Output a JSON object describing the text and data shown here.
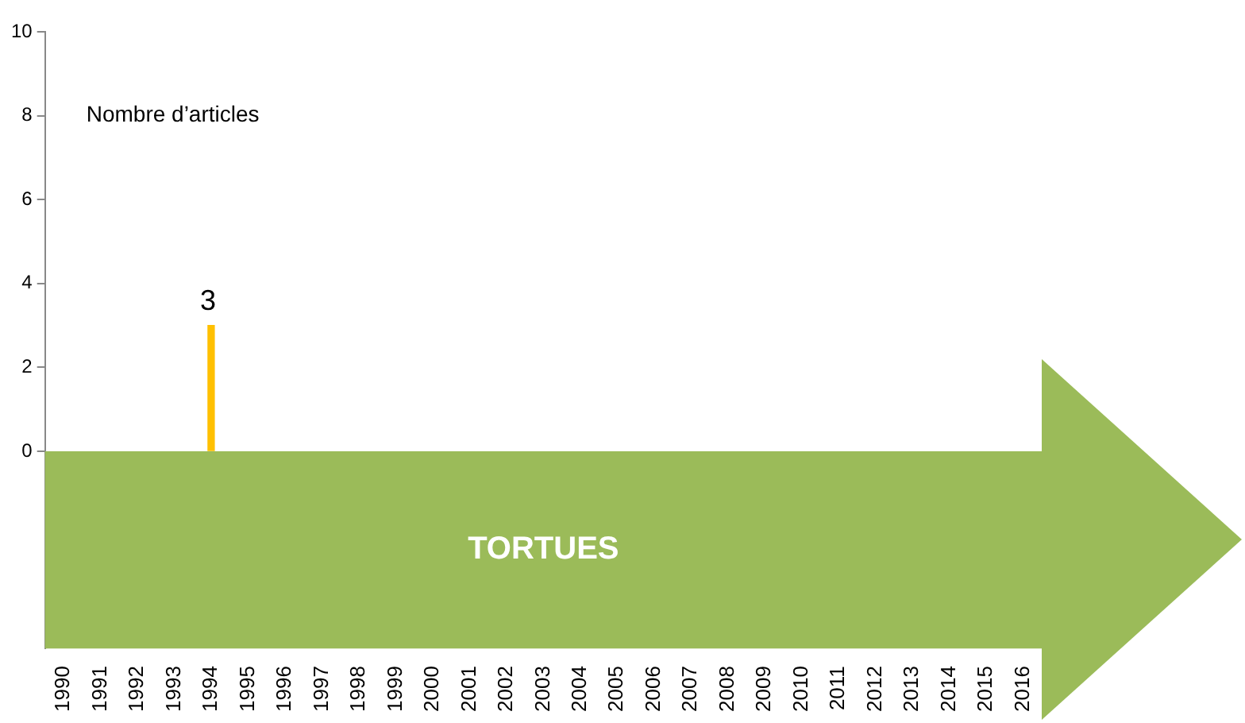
{
  "chart_data": {
    "type": "bar",
    "ylabel": "Nombre d’articles",
    "bands": [
      {
        "axis": "y",
        "from": -4.7,
        "to": 0,
        "label": "TORTUES",
        "color": "#9bbb59"
      }
    ],
    "categories": [
      "1990",
      "1991",
      "1992",
      "1993",
      "1994",
      "1995",
      "1996",
      "1997",
      "1998",
      "1999",
      "2000",
      "2001",
      "2002",
      "2003",
      "2004",
      "2005",
      "2006",
      "2007",
      "2008",
      "2009",
      "2010",
      "2011",
      "2012",
      "2013",
      "2014",
      "2015",
      "2016"
    ],
    "values": [
      null,
      null,
      null,
      null,
      3,
      null,
      null,
      null,
      null,
      null,
      null,
      null,
      null,
      null,
      null,
      null,
      null,
      null,
      null,
      null,
      null,
      null,
      null,
      null,
      null,
      null,
      null
    ],
    "color": "#ffc000",
    "ylim": [
      -4.7,
      10
    ],
    "yticks": [
      0,
      2,
      4,
      6,
      8,
      10
    ],
    "grid": false,
    "legend": false,
    "data_labels": true
  }
}
